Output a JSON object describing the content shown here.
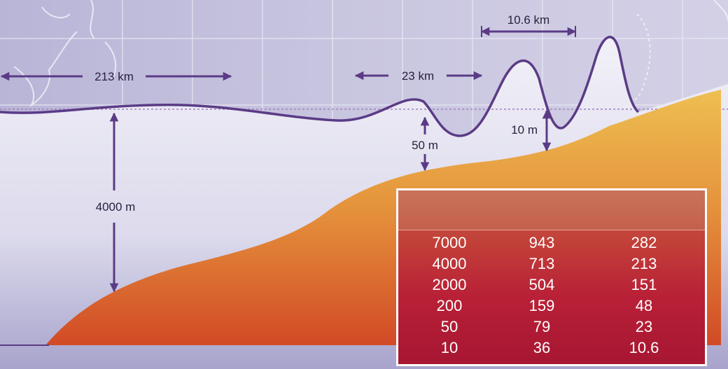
{
  "labels": {
    "wavelength_deep": "213 km",
    "wavelength_mid": "23 km",
    "wavelength_shallow": "10.6 km",
    "depth_deep": "4000 m",
    "depth_mid": "50 m",
    "depth_shallow": "10 m"
  },
  "table": {
    "headers": [
      "",
      "",
      ""
    ],
    "rows": [
      [
        "7000",
        "943",
        "282"
      ],
      [
        "4000",
        "713",
        "213"
      ],
      [
        "2000",
        "504",
        "151"
      ],
      [
        "200",
        "159",
        "48"
      ],
      [
        "50",
        "79",
        "23"
      ],
      [
        "10",
        "36",
        "10.6"
      ]
    ]
  },
  "colors": {
    "water": "#e6e4f1",
    "seafloor_top": "#e9b24c",
    "seafloor_bottom": "#d3562a",
    "arrow": "#5b3b86",
    "table_bg": "#b92137"
  }
}
